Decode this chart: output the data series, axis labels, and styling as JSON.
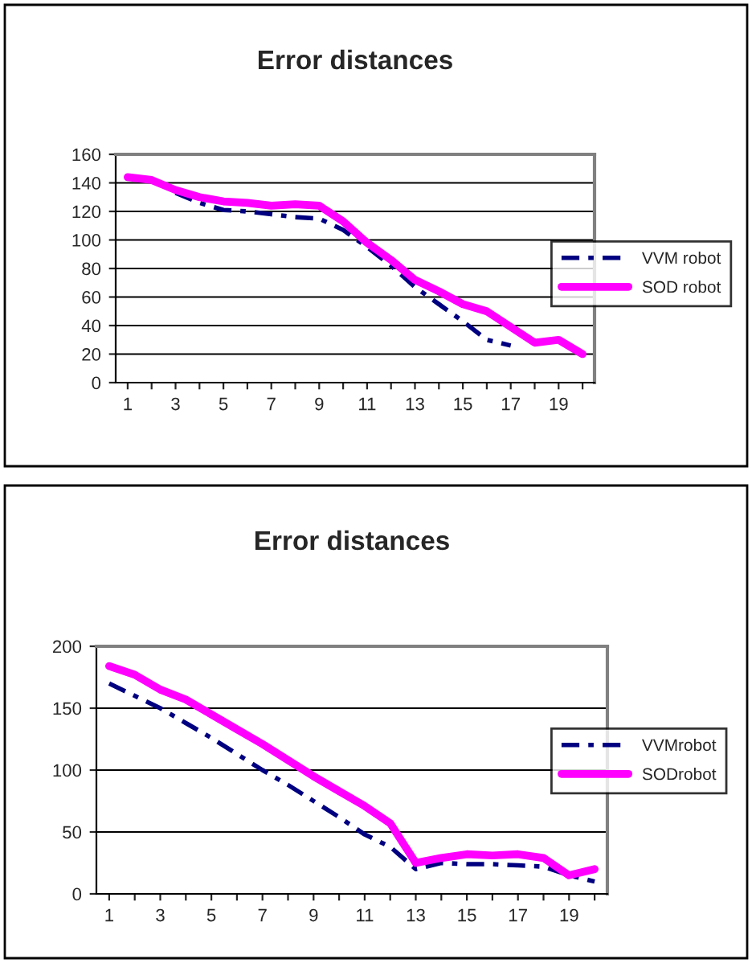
{
  "chart_data": [
    {
      "type": "line",
      "title": "Error distances",
      "categories": [
        "1",
        null,
        "3",
        null,
        "5",
        null,
        "7",
        null,
        "9",
        null,
        "11",
        null,
        "13",
        null,
        "15",
        null,
        "17",
        null,
        "19",
        null
      ],
      "series": [
        {
          "name": "VVM robot",
          "color": "#000080",
          "line_style": "dashed",
          "values": [
            null,
            null,
            133,
            126,
            121,
            120,
            118,
            116,
            115,
            107,
            95,
            82,
            67,
            55,
            43,
            30,
            26,
            null,
            null,
            null
          ]
        },
        {
          "name": "SOD robot",
          "color": "#ff00ff",
          "line_style": "solid",
          "values": [
            144,
            142,
            135,
            130,
            127,
            126,
            124,
            125,
            124,
            113,
            98,
            86,
            72,
            64,
            55,
            50,
            39,
            28,
            30,
            20
          ]
        }
      ],
      "ylim": [
        0,
        160
      ],
      "yticks": [
        0,
        20,
        40,
        60,
        80,
        100,
        120,
        140,
        160
      ],
      "grid": "y",
      "legend": "right",
      "marker": "none"
    },
    {
      "type": "line",
      "title": "Error distances",
      "categories": [
        "1",
        null,
        "3",
        null,
        "5",
        null,
        "7",
        null,
        "9",
        null,
        "11",
        null,
        "13",
        null,
        "15",
        null,
        "17",
        null,
        "19",
        null
      ],
      "series": [
        {
          "name": "VVMrobot",
          "color": "#000080",
          "line_style": "dashed",
          "values": [
            170,
            160,
            150,
            138,
            126,
            113,
            100,
            88,
            75,
            62,
            48,
            38,
            20,
            25,
            24,
            24,
            23,
            22,
            15,
            10
          ]
        },
        {
          "name": "SODrobot",
          "color": "#ff00ff",
          "line_style": "solid",
          "values": [
            184,
            177,
            165,
            157,
            145,
            133,
            121,
            108,
            95,
            83,
            71,
            57,
            25,
            29,
            32,
            31,
            32,
            29,
            15,
            20
          ]
        }
      ],
      "ylim": [
        0,
        200
      ],
      "yticks": [
        0,
        50,
        100,
        150,
        200
      ],
      "grid": "y",
      "legend": "right",
      "marker": "none"
    }
  ]
}
